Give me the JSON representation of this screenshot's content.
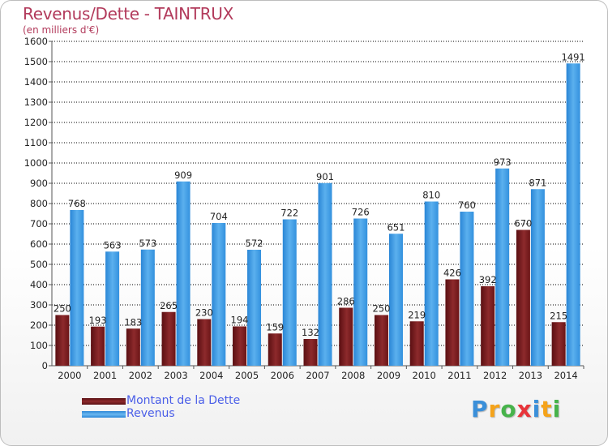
{
  "title": "Revenus/Dette - TAINTRUX",
  "subtitle": "(en milliers d'€)",
  "legend": [
    {
      "name": "Montant de la Dette",
      "color": "#7a1a1c"
    },
    {
      "name": "Revenus",
      "color": "#3d9be6"
    }
  ],
  "logo": {
    "text": "Proxiti",
    "letters": [
      "P",
      "r",
      "o",
      "x",
      "i",
      "t",
      "i"
    ],
    "colors": [
      "#3a8fd9",
      "#f5a31a",
      "#47b34b",
      "#e8343a",
      "#3a8fd9",
      "#f5a31a",
      "#47b34b"
    ]
  },
  "chart_data": {
    "type": "bar",
    "categories": [
      "2000",
      "2001",
      "2002",
      "2003",
      "2004",
      "2005",
      "2006",
      "2007",
      "2008",
      "2009",
      "2010",
      "2011",
      "2012",
      "2013",
      "2014"
    ],
    "series": [
      {
        "name": "Montant de la Dette",
        "values": [
          250,
          193,
          183,
          265,
          230,
          194,
          159,
          132,
          286,
          250,
          219,
          426,
          392,
          670,
          215
        ]
      },
      {
        "name": "Revenus",
        "values": [
          768,
          563,
          573,
          909,
          704,
          572,
          722,
          901,
          726,
          651,
          810,
          760,
          973,
          871,
          1491
        ]
      }
    ],
    "y_ticks": [
      "0",
      "100",
      "200",
      "300",
      "400",
      "500",
      "600",
      "700",
      "800",
      "900",
      "1000",
      "1100",
      "1200",
      "1300",
      "1400",
      "1500",
      "1600"
    ],
    "ylim": [
      0,
      1600
    ],
    "xlabel": "",
    "ylabel": ""
  }
}
